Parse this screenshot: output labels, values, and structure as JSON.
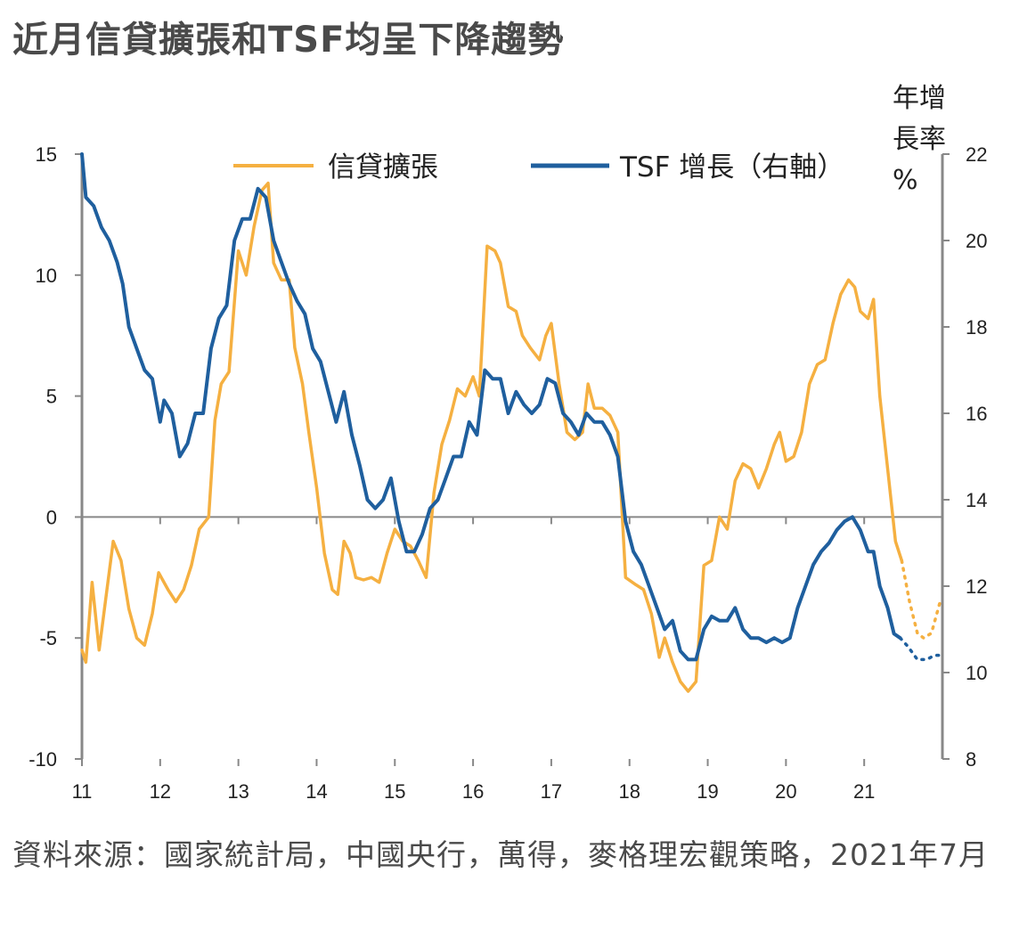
{
  "title": "近月信貸擴張和TSF均呈下降趨勢",
  "source": "資料來源：國家統計局，中國央行，萬得，麥格理宏觀策略，2021年7月",
  "colors": {
    "credit": "#f5b041",
    "tsf": "#1f5f9e",
    "axis": "#888888"
  },
  "chart_data": {
    "type": "line",
    "legend_position": "top",
    "grid": false,
    "x_labels": [
      "11",
      "12",
      "13",
      "14",
      "15",
      "16",
      "17",
      "18",
      "19",
      "20",
      "21"
    ],
    "x_range": [
      2011.0,
      2022.0
    ],
    "y_left": {
      "range": [
        -10,
        15
      ],
      "ticks": [
        "15",
        "10",
        "5",
        "0",
        "-5",
        "-10"
      ]
    },
    "y_right": {
      "range": [
        8,
        22
      ],
      "ticks": [
        "22",
        "20",
        "18",
        "16",
        "14",
        "12",
        "10",
        "8"
      ],
      "unit_line1": "年增",
      "unit_line2": "長率",
      "unit_line3": "%"
    },
    "series": [
      {
        "name": "信貸擴張",
        "axis": "left",
        "color": "#f5b041",
        "points": [
          [
            2011.0,
            -5.5
          ],
          [
            2011.05,
            -6.0
          ],
          [
            2011.13,
            -2.7
          ],
          [
            2011.22,
            -5.5
          ],
          [
            2011.3,
            -3.5
          ],
          [
            2011.4,
            -1.0
          ],
          [
            2011.5,
            -1.8
          ],
          [
            2011.6,
            -3.8
          ],
          [
            2011.7,
            -5.0
          ],
          [
            2011.8,
            -5.3
          ],
          [
            2011.9,
            -4.0
          ],
          [
            2011.98,
            -2.3
          ],
          [
            2012.1,
            -3.0
          ],
          [
            2012.2,
            -3.5
          ],
          [
            2012.3,
            -3.0
          ],
          [
            2012.4,
            -2.0
          ],
          [
            2012.5,
            -0.5
          ],
          [
            2012.62,
            0.0
          ],
          [
            2012.7,
            4.0
          ],
          [
            2012.78,
            5.5
          ],
          [
            2012.88,
            6.0
          ],
          [
            2013.0,
            11.0
          ],
          [
            2013.1,
            10.0
          ],
          [
            2013.2,
            12.0
          ],
          [
            2013.3,
            13.5
          ],
          [
            2013.38,
            13.8
          ],
          [
            2013.45,
            10.5
          ],
          [
            2013.55,
            9.8
          ],
          [
            2013.65,
            9.8
          ],
          [
            2013.72,
            7.0
          ],
          [
            2013.82,
            5.5
          ],
          [
            2013.9,
            3.5
          ],
          [
            2014.0,
            1.2
          ],
          [
            2014.1,
            -1.5
          ],
          [
            2014.2,
            -3.0
          ],
          [
            2014.27,
            -3.2
          ],
          [
            2014.35,
            -1.0
          ],
          [
            2014.43,
            -1.5
          ],
          [
            2014.5,
            -2.5
          ],
          [
            2014.6,
            -2.6
          ],
          [
            2014.7,
            -2.5
          ],
          [
            2014.8,
            -2.7
          ],
          [
            2014.9,
            -1.5
          ],
          [
            2015.0,
            -0.5
          ],
          [
            2015.1,
            -1.0
          ],
          [
            2015.2,
            -1.2
          ],
          [
            2015.3,
            -1.8
          ],
          [
            2015.4,
            -2.5
          ],
          [
            2015.5,
            1.0
          ],
          [
            2015.6,
            3.0
          ],
          [
            2015.7,
            4.0
          ],
          [
            2015.8,
            5.3
          ],
          [
            2015.9,
            5.0
          ],
          [
            2016.0,
            5.8
          ],
          [
            2016.08,
            5.0
          ],
          [
            2016.18,
            11.2
          ],
          [
            2016.28,
            11.0
          ],
          [
            2016.35,
            10.5
          ],
          [
            2016.45,
            8.7
          ],
          [
            2016.55,
            8.5
          ],
          [
            2016.63,
            7.5
          ],
          [
            2016.73,
            7.0
          ],
          [
            2016.85,
            6.5
          ],
          [
            2016.93,
            7.5
          ],
          [
            2017.0,
            8.0
          ],
          [
            2017.1,
            5.5
          ],
          [
            2017.2,
            3.5
          ],
          [
            2017.3,
            3.2
          ],
          [
            2017.4,
            3.5
          ],
          [
            2017.47,
            5.5
          ],
          [
            2017.55,
            4.5
          ],
          [
            2017.65,
            4.5
          ],
          [
            2017.75,
            4.2
          ],
          [
            2017.85,
            3.5
          ],
          [
            2017.95,
            -2.5
          ],
          [
            2018.08,
            -2.8
          ],
          [
            2018.18,
            -3.0
          ],
          [
            2018.28,
            -4.0
          ],
          [
            2018.38,
            -5.8
          ],
          [
            2018.45,
            -5.0
          ],
          [
            2018.55,
            -6.0
          ],
          [
            2018.65,
            -6.8
          ],
          [
            2018.75,
            -7.2
          ],
          [
            2018.85,
            -6.8
          ],
          [
            2018.95,
            -2.0
          ],
          [
            2019.05,
            -1.8
          ],
          [
            2019.15,
            0.0
          ],
          [
            2019.25,
            -0.5
          ],
          [
            2019.35,
            1.5
          ],
          [
            2019.45,
            2.2
          ],
          [
            2019.55,
            2.0
          ],
          [
            2019.65,
            1.2
          ],
          [
            2019.75,
            2.0
          ],
          [
            2019.85,
            3.0
          ],
          [
            2019.92,
            3.5
          ],
          [
            2020.0,
            2.3
          ],
          [
            2020.1,
            2.5
          ],
          [
            2020.2,
            3.5
          ],
          [
            2020.3,
            5.5
          ],
          [
            2020.4,
            6.3
          ],
          [
            2020.5,
            6.5
          ],
          [
            2020.6,
            8.0
          ],
          [
            2020.7,
            9.2
          ],
          [
            2020.8,
            9.8
          ],
          [
            2020.88,
            9.5
          ],
          [
            2020.95,
            8.5
          ],
          [
            2021.05,
            8.2
          ],
          [
            2021.12,
            9.0
          ],
          [
            2021.2,
            5.0
          ],
          [
            2021.3,
            2.0
          ],
          [
            2021.4,
            -1.0
          ],
          [
            2021.48,
            -1.8
          ]
        ],
        "forecast": [
          [
            2021.48,
            -1.8
          ],
          [
            2021.58,
            -3.5
          ],
          [
            2021.68,
            -4.8
          ],
          [
            2021.76,
            -5.0
          ],
          [
            2021.86,
            -4.8
          ],
          [
            2021.97,
            -3.5
          ]
        ]
      },
      {
        "name": "TSF 增長（右軸）",
        "axis": "right",
        "color": "#1f5f9e",
        "points": [
          [
            2011.0,
            22.0
          ],
          [
            2011.05,
            21.0
          ],
          [
            2011.15,
            20.8
          ],
          [
            2011.25,
            20.3
          ],
          [
            2011.35,
            20.0
          ],
          [
            2011.45,
            19.5
          ],
          [
            2011.52,
            19.0
          ],
          [
            2011.6,
            18.0
          ],
          [
            2011.7,
            17.5
          ],
          [
            2011.8,
            17.0
          ],
          [
            2011.9,
            16.8
          ],
          [
            2012.0,
            15.8
          ],
          [
            2012.05,
            16.3
          ],
          [
            2012.15,
            16.0
          ],
          [
            2012.25,
            15.0
          ],
          [
            2012.35,
            15.3
          ],
          [
            2012.45,
            16.0
          ],
          [
            2012.55,
            16.0
          ],
          [
            2012.65,
            17.5
          ],
          [
            2012.75,
            18.2
          ],
          [
            2012.85,
            18.5
          ],
          [
            2012.95,
            20.0
          ],
          [
            2013.05,
            20.5
          ],
          [
            2013.15,
            20.5
          ],
          [
            2013.25,
            21.2
          ],
          [
            2013.35,
            21.0
          ],
          [
            2013.45,
            20.0
          ],
          [
            2013.55,
            19.5
          ],
          [
            2013.65,
            19.0
          ],
          [
            2013.75,
            18.6
          ],
          [
            2013.85,
            18.3
          ],
          [
            2013.95,
            17.5
          ],
          [
            2014.05,
            17.2
          ],
          [
            2014.15,
            16.5
          ],
          [
            2014.25,
            15.8
          ],
          [
            2014.35,
            16.5
          ],
          [
            2014.45,
            15.5
          ],
          [
            2014.55,
            14.8
          ],
          [
            2014.65,
            14.0
          ],
          [
            2014.75,
            13.8
          ],
          [
            2014.85,
            14.0
          ],
          [
            2014.95,
            14.5
          ],
          [
            2015.05,
            13.5
          ],
          [
            2015.15,
            12.8
          ],
          [
            2015.25,
            12.8
          ],
          [
            2015.35,
            13.2
          ],
          [
            2015.45,
            13.8
          ],
          [
            2015.55,
            14.0
          ],
          [
            2015.65,
            14.5
          ],
          [
            2015.75,
            15.0
          ],
          [
            2015.85,
            15.0
          ],
          [
            2015.95,
            15.8
          ],
          [
            2016.05,
            15.5
          ],
          [
            2016.15,
            17.0
          ],
          [
            2016.25,
            16.8
          ],
          [
            2016.35,
            16.8
          ],
          [
            2016.45,
            16.0
          ],
          [
            2016.55,
            16.5
          ],
          [
            2016.65,
            16.2
          ],
          [
            2016.75,
            16.0
          ],
          [
            2016.85,
            16.2
          ],
          [
            2016.95,
            16.8
          ],
          [
            2017.05,
            16.7
          ],
          [
            2017.15,
            16.0
          ],
          [
            2017.25,
            15.8
          ],
          [
            2017.35,
            15.5
          ],
          [
            2017.45,
            16.0
          ],
          [
            2017.55,
            15.8
          ],
          [
            2017.65,
            15.8
          ],
          [
            2017.75,
            15.5
          ],
          [
            2017.85,
            15.0
          ],
          [
            2017.95,
            13.5
          ],
          [
            2018.05,
            12.8
          ],
          [
            2018.15,
            12.5
          ],
          [
            2018.25,
            12.0
          ],
          [
            2018.35,
            11.5
          ],
          [
            2018.45,
            11.0
          ],
          [
            2018.55,
            11.2
          ],
          [
            2018.65,
            10.5
          ],
          [
            2018.75,
            10.3
          ],
          [
            2018.85,
            10.3
          ],
          [
            2018.95,
            11.0
          ],
          [
            2019.05,
            11.3
          ],
          [
            2019.15,
            11.2
          ],
          [
            2019.25,
            11.2
          ],
          [
            2019.35,
            11.5
          ],
          [
            2019.45,
            11.0
          ],
          [
            2019.55,
            10.8
          ],
          [
            2019.65,
            10.8
          ],
          [
            2019.75,
            10.7
          ],
          [
            2019.85,
            10.8
          ],
          [
            2019.95,
            10.7
          ],
          [
            2020.05,
            10.8
          ],
          [
            2020.15,
            11.5
          ],
          [
            2020.25,
            12.0
          ],
          [
            2020.35,
            12.5
          ],
          [
            2020.45,
            12.8
          ],
          [
            2020.55,
            13.0
          ],
          [
            2020.65,
            13.3
          ],
          [
            2020.75,
            13.5
          ],
          [
            2020.85,
            13.6
          ],
          [
            2020.95,
            13.3
          ],
          [
            2021.05,
            12.8
          ],
          [
            2021.12,
            12.8
          ],
          [
            2021.2,
            12.0
          ],
          [
            2021.3,
            11.5
          ],
          [
            2021.38,
            10.9
          ],
          [
            2021.46,
            10.8
          ]
        ],
        "forecast": [
          [
            2021.46,
            10.8
          ],
          [
            2021.56,
            10.6
          ],
          [
            2021.68,
            10.3
          ],
          [
            2021.8,
            10.3
          ],
          [
            2021.9,
            10.4
          ],
          [
            2021.97,
            10.4
          ]
        ]
      }
    ]
  }
}
